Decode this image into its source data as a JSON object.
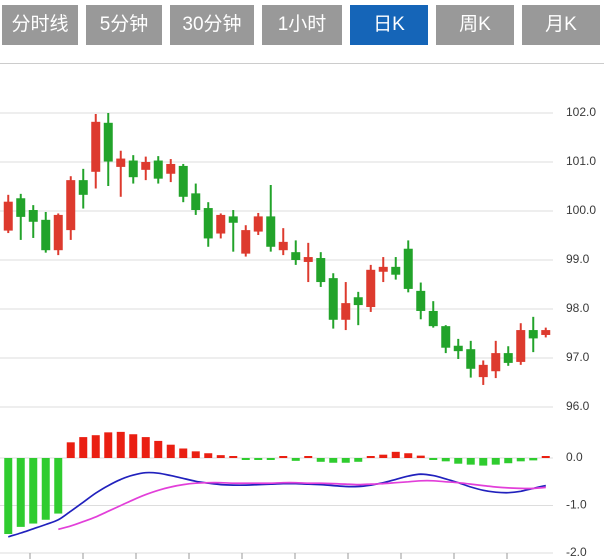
{
  "tabs": {
    "items": [
      {
        "label": "分时线",
        "active": false
      },
      {
        "label": "5分钟",
        "active": false
      },
      {
        "label": "30分钟",
        "active": false
      },
      {
        "label": "1小时",
        "active": false
      },
      {
        "label": "日K",
        "active": true
      },
      {
        "label": "周K",
        "active": false
      },
      {
        "label": "月K",
        "active": false
      }
    ]
  },
  "colors": {
    "tab_bg": "#999999",
    "tab_active_bg": "#1565b8",
    "tab_text": "#ffffff",
    "candle_up": "#dd3a2e",
    "candle_down": "#22a32a",
    "macd_up": "#ea1f12",
    "macd_down": "#2fcc2f",
    "dif_line": "#2121bd",
    "dea_line": "#e23fd9",
    "grid": "#dddddd",
    "axis_text": "#3a3a3a",
    "tick": "#999999"
  },
  "chart_data": {
    "type": "candlestick",
    "title": "日K (daily K-line) with MACD",
    "main_panel": {
      "y_tick_labels": [
        "102.0",
        "101.0",
        "100.0",
        "99.0",
        "98.0",
        "97.0",
        "96.0"
      ],
      "y_tick_values": [
        102.0,
        101.0,
        100.0,
        99.0,
        98.0,
        97.0,
        96.0
      ],
      "ylim": [
        95.6,
        103.0
      ],
      "grid": true,
      "candles_ohlc": [
        [
          99.6,
          100.33,
          99.55,
          100.19
        ],
        [
          100.26,
          100.35,
          99.41,
          99.88
        ],
        [
          100.02,
          100.12,
          99.45,
          99.78
        ],
        [
          99.82,
          99.98,
          99.15,
          99.2
        ],
        [
          99.2,
          99.95,
          99.1,
          99.92
        ],
        [
          99.61,
          100.71,
          99.41,
          100.63
        ],
        [
          100.63,
          100.86,
          100.05,
          100.33
        ],
        [
          100.8,
          101.98,
          100.46,
          101.82
        ],
        [
          101.8,
          102.0,
          100.51,
          101.01
        ],
        [
          100.9,
          101.23,
          100.29,
          101.07
        ],
        [
          101.03,
          101.14,
          100.56,
          100.69
        ],
        [
          100.84,
          101.11,
          100.63,
          101.0
        ],
        [
          101.03,
          101.12,
          100.56,
          100.66
        ],
        [
          100.76,
          101.06,
          100.59,
          100.96
        ],
        [
          100.92,
          100.96,
          100.18,
          100.29
        ],
        [
          100.36,
          100.56,
          99.92,
          100.02
        ],
        [
          100.06,
          100.18,
          99.27,
          99.44
        ],
        [
          99.54,
          99.95,
          99.44,
          99.92
        ],
        [
          99.89,
          100.02,
          99.17,
          99.76
        ],
        [
          99.13,
          99.71,
          99.07,
          99.61
        ],
        [
          99.58,
          99.96,
          99.51,
          99.89
        ],
        [
          99.89,
          100.53,
          99.17,
          99.27
        ],
        [
          99.2,
          99.65,
          99.1,
          99.37
        ],
        [
          99.16,
          99.4,
          98.9,
          99.0
        ],
        [
          98.96,
          99.35,
          98.55,
          99.06
        ],
        [
          99.04,
          99.16,
          98.45,
          98.55
        ],
        [
          98.63,
          98.73,
          97.6,
          97.78
        ],
        [
          97.78,
          98.55,
          97.57,
          98.12
        ],
        [
          98.24,
          98.35,
          97.67,
          98.08
        ],
        [
          98.04,
          98.9,
          97.94,
          98.8
        ],
        [
          98.76,
          99.06,
          98.55,
          98.86
        ],
        [
          98.86,
          99.06,
          98.6,
          98.7
        ],
        [
          99.23,
          99.4,
          98.34,
          98.41
        ],
        [
          98.37,
          98.54,
          97.79,
          97.96
        ],
        [
          97.96,
          98.16,
          97.62,
          97.65
        ],
        [
          97.65,
          97.67,
          97.1,
          97.21
        ],
        [
          97.25,
          97.39,
          96.98,
          97.14
        ],
        [
          97.18,
          97.35,
          96.6,
          96.78
        ],
        [
          96.61,
          96.95,
          96.45,
          96.86
        ],
        [
          96.73,
          97.35,
          96.59,
          97.1
        ],
        [
          97.1,
          97.24,
          96.84,
          96.9
        ],
        [
          96.92,
          97.71,
          96.86,
          97.57
        ],
        [
          97.57,
          97.84,
          97.12,
          97.4
        ],
        [
          97.47,
          97.62,
          97.42,
          97.57
        ]
      ]
    },
    "macd_panel": {
      "y_tick_labels": [
        "0.0",
        "-1.0",
        "-2.0"
      ],
      "y_tick_values": [
        0.0,
        -1.0,
        -2.0
      ],
      "ylim": [
        -2.1,
        0.6
      ],
      "grid": true,
      "histogram": [
        -1.6,
        -1.45,
        -1.38,
        -1.3,
        -1.17,
        0.33,
        0.44,
        0.48,
        0.54,
        0.55,
        0.5,
        0.44,
        0.36,
        0.28,
        0.2,
        0.14,
        0.1,
        0.06,
        0.04,
        -0.03,
        -0.04,
        -0.03,
        0.03,
        -0.06,
        0.03,
        -0.08,
        -0.1,
        -0.1,
        -0.08,
        0.04,
        0.07,
        0.13,
        0.1,
        0.05,
        -0.04,
        -0.07,
        -0.12,
        -0.14,
        -0.16,
        -0.14,
        -0.11,
        -0.07,
        -0.05,
        0.04
      ],
      "dif_line": [
        -1.66,
        -1.58,
        -1.49,
        -1.4,
        -1.3,
        -1.12,
        -0.93,
        -0.74,
        -0.58,
        -0.45,
        -0.36,
        -0.31,
        -0.32,
        -0.37,
        -0.43,
        -0.49,
        -0.53,
        -0.56,
        -0.57,
        -0.57,
        -0.56,
        -0.55,
        -0.54,
        -0.54,
        -0.55,
        -0.56,
        -0.58,
        -0.6,
        -0.6,
        -0.57,
        -0.52,
        -0.45,
        -0.38,
        -0.34,
        -0.37,
        -0.44,
        -0.52,
        -0.61,
        -0.68,
        -0.72,
        -0.73,
        -0.7,
        -0.64,
        -0.58
      ],
      "dea_line": [
        null,
        null,
        null,
        null,
        -1.5,
        -1.43,
        -1.34,
        -1.24,
        -1.12,
        -1.0,
        -0.88,
        -0.77,
        -0.68,
        -0.61,
        -0.56,
        -0.53,
        -0.52,
        -0.52,
        -0.53,
        -0.53,
        -0.53,
        -0.53,
        -0.52,
        -0.52,
        -0.53,
        -0.53,
        -0.54,
        -0.55,
        -0.56,
        -0.55,
        -0.54,
        -0.52,
        -0.5,
        -0.48,
        -0.48,
        -0.5,
        -0.52,
        -0.55,
        -0.58,
        -0.61,
        -0.63,
        -0.64,
        -0.64,
        -0.62
      ]
    }
  }
}
